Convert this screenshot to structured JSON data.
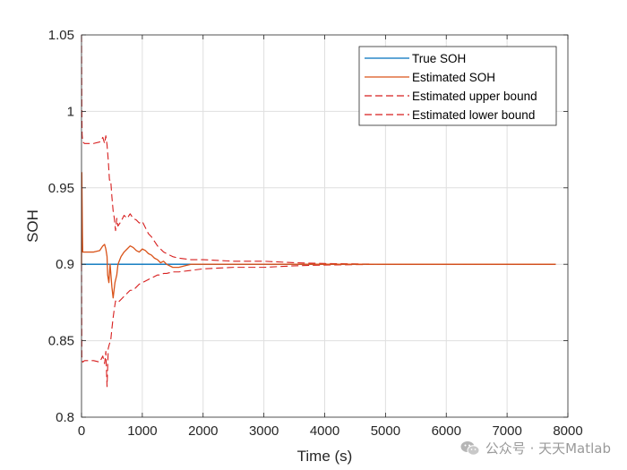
{
  "chart_data": {
    "type": "line",
    "title": "",
    "xlabel": "Time (s)",
    "ylabel": "SOH",
    "xlim": [
      0,
      8000
    ],
    "ylim": [
      0.8,
      1.05
    ],
    "x_ticks": [
      0,
      1000,
      2000,
      3000,
      4000,
      5000,
      6000,
      7000,
      8000
    ],
    "x_tick_labels": [
      "0",
      "1000",
      "2000",
      "3000",
      "4000",
      "5000",
      "6000",
      "7000",
      "8000"
    ],
    "y_ticks": [
      0.8,
      0.85,
      0.9,
      0.95,
      1.0,
      1.05
    ],
    "y_tick_labels": [
      "0.8",
      "0.85",
      "0.9",
      "0.95",
      "1",
      "1.05"
    ],
    "grid": true,
    "legend_position": "top-right",
    "series": [
      {
        "name": "True SOH",
        "color": "#0072BD",
        "style": "solid",
        "x": [
          0,
          7800
        ],
        "y": [
          0.9,
          0.9
        ]
      },
      {
        "name": "Estimated SOH",
        "color": "#D95319",
        "style": "solid",
        "x": [
          0,
          5,
          10,
          15,
          20,
          40,
          100,
          200,
          300,
          350,
          380,
          400,
          420,
          430,
          450,
          470,
          500,
          520,
          550,
          580,
          600,
          620,
          650,
          700,
          750,
          800,
          850,
          900,
          950,
          1000,
          1050,
          1100,
          1150,
          1200,
          1250,
          1300,
          1350,
          1400,
          1500,
          1600,
          1700,
          1800,
          2000,
          2200,
          2500,
          3000,
          3500,
          4000,
          5000,
          6000,
          7000,
          7800
        ],
        "y": [
          0.9,
          0.96,
          0.94,
          0.92,
          0.908,
          0.908,
          0.908,
          0.908,
          0.909,
          0.912,
          0.913,
          0.91,
          0.905,
          0.893,
          0.888,
          0.9,
          0.885,
          0.878,
          0.888,
          0.893,
          0.9,
          0.902,
          0.905,
          0.908,
          0.91,
          0.912,
          0.911,
          0.909,
          0.908,
          0.91,
          0.909,
          0.907,
          0.906,
          0.904,
          0.903,
          0.901,
          0.902,
          0.9,
          0.898,
          0.898,
          0.899,
          0.9,
          0.9,
          0.9,
          0.9,
          0.9,
          0.9,
          0.9,
          0.9,
          0.9,
          0.9,
          0.9
        ]
      },
      {
        "name": "Estimated upper bound",
        "color": "#D71E1E",
        "style": "dashed",
        "x": [
          0,
          5,
          10,
          20,
          50,
          100,
          200,
          300,
          350,
          380,
          400,
          420,
          440,
          460,
          480,
          500,
          520,
          540,
          560,
          580,
          600,
          650,
          700,
          750,
          800,
          850,
          900,
          950,
          1000,
          1050,
          1100,
          1150,
          1200,
          1250,
          1300,
          1350,
          1400,
          1500,
          1600,
          1800,
          2000,
          2500,
          3000,
          3500,
          4000,
          5000,
          6000,
          7000,
          7800
        ],
        "y": [
          1.05,
          1.0,
          0.985,
          0.98,
          0.979,
          0.979,
          0.979,
          0.98,
          0.983,
          0.979,
          0.984,
          0.978,
          0.968,
          0.955,
          0.955,
          0.944,
          0.935,
          0.93,
          0.922,
          0.93,
          0.925,
          0.928,
          0.932,
          0.93,
          0.933,
          0.93,
          0.929,
          0.927,
          0.928,
          0.924,
          0.92,
          0.918,
          0.915,
          0.912,
          0.91,
          0.908,
          0.907,
          0.905,
          0.904,
          0.903,
          0.903,
          0.902,
          0.902,
          0.901,
          0.9005,
          0.9,
          0.9,
          0.9,
          0.9
        ]
      },
      {
        "name": "Estimated lower bound",
        "color": "#D71E1E",
        "style": "dashed",
        "x": [
          0,
          5,
          10,
          20,
          50,
          100,
          200,
          300,
          350,
          380,
          400,
          420,
          440,
          460,
          480,
          500,
          520,
          540,
          560,
          580,
          600,
          650,
          700,
          750,
          800,
          850,
          900,
          950,
          1000,
          1050,
          1100,
          1150,
          1200,
          1250,
          1300,
          1350,
          1400,
          1500,
          1600,
          1800,
          2000,
          2500,
          3000,
          3500,
          4000,
          5000,
          6000,
          7000,
          7800
        ],
        "y": [
          0.9,
          0.84,
          0.838,
          0.836,
          0.837,
          0.837,
          0.837,
          0.836,
          0.84,
          0.835,
          0.843,
          0.82,
          0.845,
          0.848,
          0.85,
          0.858,
          0.865,
          0.871,
          0.876,
          0.875,
          0.875,
          0.877,
          0.879,
          0.881,
          0.883,
          0.883,
          0.885,
          0.887,
          0.888,
          0.889,
          0.89,
          0.891,
          0.892,
          0.893,
          0.893,
          0.894,
          0.894,
          0.895,
          0.895,
          0.896,
          0.897,
          0.898,
          0.898,
          0.899,
          0.8995,
          0.9,
          0.9,
          0.9,
          0.9
        ]
      }
    ]
  },
  "watermark": {
    "text": "公众号 · 天天Matlab",
    "icon": "wechat-icon"
  }
}
